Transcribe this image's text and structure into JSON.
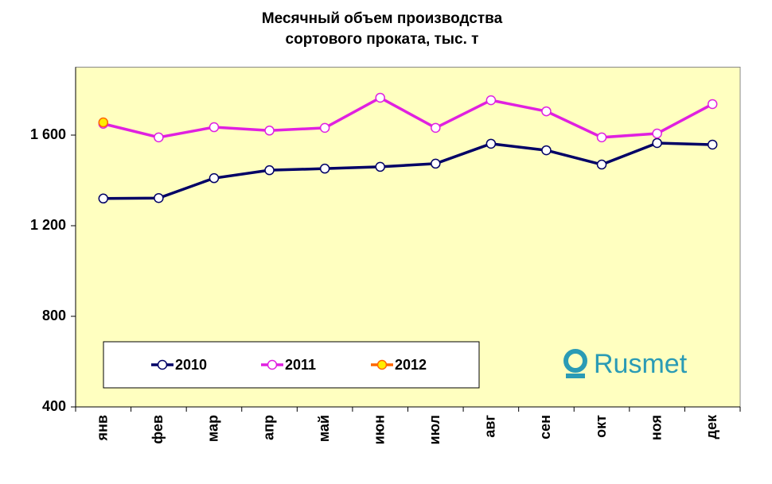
{
  "chart_data": {
    "type": "line",
    "title": [
      "Месячный объем производства",
      "сортового проката, тыс. т"
    ],
    "categories": [
      "янв",
      "фев",
      "мар",
      "апр",
      "май",
      "июн",
      "июл",
      "авг",
      "сен",
      "окт",
      "ноя",
      "дек"
    ],
    "series": [
      {
        "name": "2010",
        "color": "#000066",
        "marker_fill": "#ffffff",
        "values": [
          1320,
          1322,
          1410,
          1445,
          1452,
          1460,
          1474,
          1562,
          1533,
          1470,
          1565,
          1558
        ]
      },
      {
        "name": "2011",
        "color": "#e020e0",
        "marker_fill": "#ffffff",
        "values": [
          1650,
          1590,
          1635,
          1620,
          1632,
          1765,
          1632,
          1754,
          1705,
          1590,
          1607,
          1737
        ]
      },
      {
        "name": "2012",
        "color": "#ff6600",
        "marker_fill": "#ffee00",
        "values": [
          1656,
          null,
          null,
          null,
          null,
          null,
          null,
          null,
          null,
          null,
          null,
          null
        ]
      }
    ],
    "ylim": [
      400,
      1900
    ],
    "yticks": [
      400,
      800,
      {
        "value": 1200,
        "label": "1 200"
      },
      {
        "value": 1600,
        "label": "1 600"
      }
    ],
    "grid": false,
    "legend": "bottom-left",
    "logo": "Rusmet"
  }
}
